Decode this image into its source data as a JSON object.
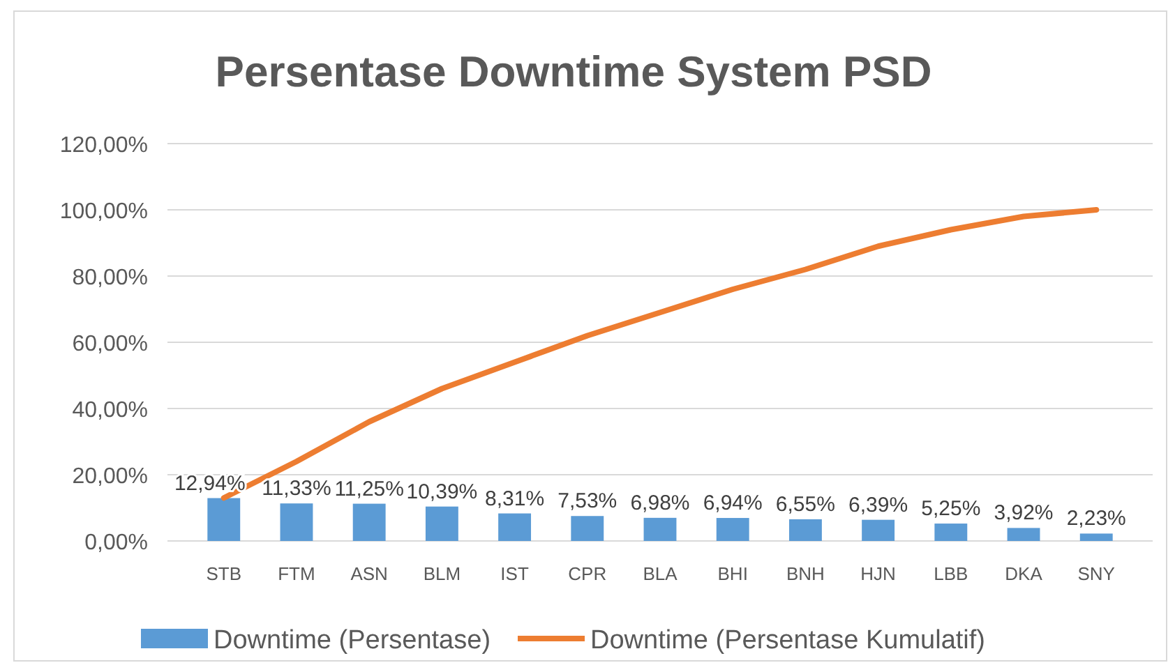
{
  "chart_data": {
    "type": "bar",
    "title": "Persentase Downtime System PSD",
    "categories": [
      "STB",
      "FTM",
      "ASN",
      "BLM",
      "IST",
      "CPR",
      "BLA",
      "BHI",
      "BNH",
      "HJN",
      "LBB",
      "DKA",
      "SNY"
    ],
    "series": [
      {
        "name": "Downtime (Persentase)",
        "color": "#5b9bd5",
        "values": [
          12.94,
          11.33,
          11.25,
          10.39,
          8.31,
          7.53,
          6.98,
          6.94,
          6.55,
          6.39,
          5.25,
          3.92,
          2.23
        ],
        "value_labels": [
          "12,94%",
          "11,33%",
          "11,25%",
          "10,39%",
          "8,31%",
          "7,53%",
          "6,98%",
          "6,94%",
          "6,55%",
          "6,39%",
          "5,25%",
          "3,92%",
          "2,23%"
        ]
      },
      {
        "name": "Downtime (Persentase Kumulatif)",
        "type": "line",
        "color": "#ed7d31",
        "values": [
          13,
          24,
          36,
          46,
          54,
          62,
          69,
          76,
          82,
          89,
          94,
          98,
          100
        ]
      }
    ],
    "ylim": [
      0,
      120
    ],
    "yticks": [
      {
        "value": 0,
        "label": "0,00%"
      },
      {
        "value": 20,
        "label": "20,00%"
      },
      {
        "value": 40,
        "label": "40,00%"
      },
      {
        "value": 60,
        "label": "60,00%"
      },
      {
        "value": 80,
        "label": "80,00%"
      },
      {
        "value": 100,
        "label": "100,00%"
      },
      {
        "value": 120,
        "label": "120,00%"
      }
    ],
    "grid": "y",
    "legend": "bottom",
    "marker": "none",
    "line_style": "solid"
  }
}
